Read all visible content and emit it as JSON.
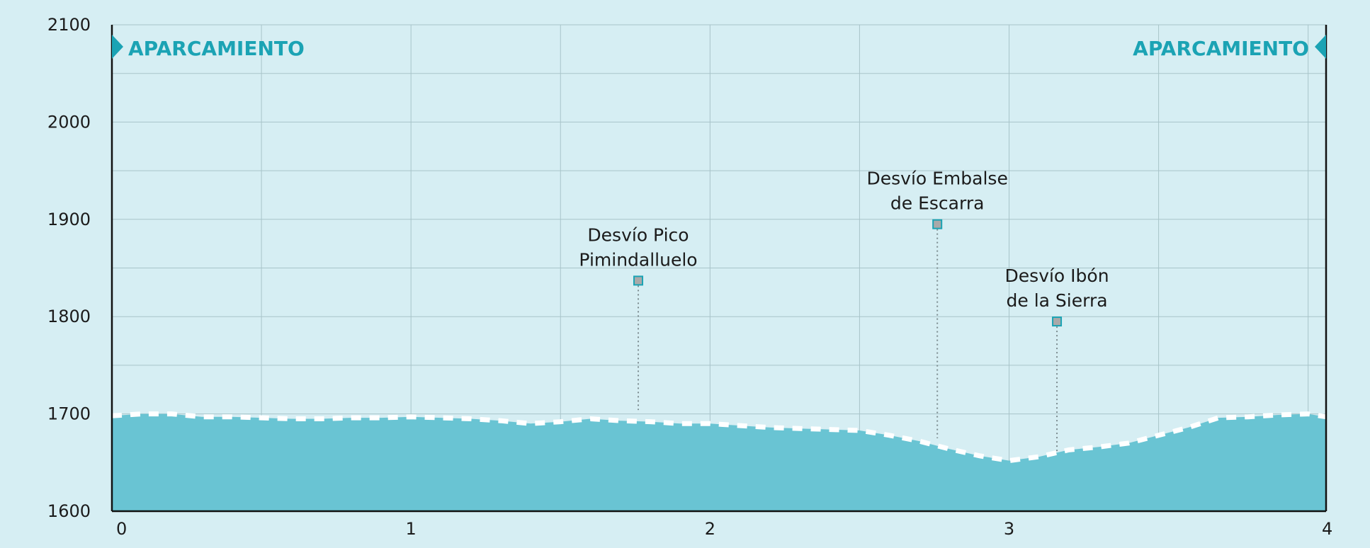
{
  "colors": {
    "background": "#d6eef3",
    "area_fill": "#69c4d3",
    "grid": "#a8c4c9",
    "accent": "#1ba3b4",
    "dash": "#ffffff",
    "marker_fill": "#a9a9a9"
  },
  "endpoints": {
    "start_label": "APARCAMIENTO",
    "end_label": "APARCAMIENTO"
  },
  "chart_data": {
    "type": "area",
    "title": "",
    "xlabel": "",
    "ylabel": "",
    "xlim": [
      0,
      4.06
    ],
    "ylim": [
      1600,
      2100
    ],
    "x_ticks": [
      "0",
      "1",
      "2",
      "3",
      "4"
    ],
    "y_ticks": [
      "1600",
      "1700",
      "1800",
      "1900",
      "2000",
      "2100"
    ],
    "grid": true,
    "series": [
      {
        "x": [
          0,
          0.1,
          0.2,
          0.3,
          0.4,
          0.5,
          0.6,
          0.7,
          0.8,
          0.9,
          1.0,
          1.1,
          1.2,
          1.3,
          1.4,
          1.5,
          1.6,
          1.7,
          1.8,
          1.9,
          2.0,
          2.1,
          2.2,
          2.3,
          2.4,
          2.5,
          2.6,
          2.7,
          2.8,
          2.9,
          3.0,
          3.1,
          3.2,
          3.3,
          3.4,
          3.5,
          3.6,
          3.7,
          3.8,
          3.9,
          4.0,
          4.06
        ],
        "y": [
          1698,
          1700,
          1700,
          1697,
          1697,
          1696,
          1695,
          1695,
          1696,
          1696,
          1697,
          1696,
          1695,
          1693,
          1690,
          1692,
          1695,
          1693,
          1692,
          1690,
          1690,
          1688,
          1686,
          1685,
          1684,
          1683,
          1678,
          1672,
          1664,
          1657,
          1652,
          1656,
          1663,
          1666,
          1670,
          1678,
          1686,
          1696,
          1697,
          1699,
          1700,
          1697
        ]
      }
    ],
    "points_of_interest": [
      {
        "label_line1": "Desvío Pico",
        "label_line2": "Pimindalluelo",
        "x": 1.76,
        "y": 1837,
        "ground": 1704
      },
      {
        "label_line1": "Desvío Embalse",
        "label_line2": "de Escarra",
        "x": 2.76,
        "y": 1895,
        "ground": 1675
      },
      {
        "label_line1": "Desvío Ibón",
        "label_line2": "de la Sierra",
        "x": 3.16,
        "y": 1795,
        "ground": 1660
      }
    ]
  }
}
